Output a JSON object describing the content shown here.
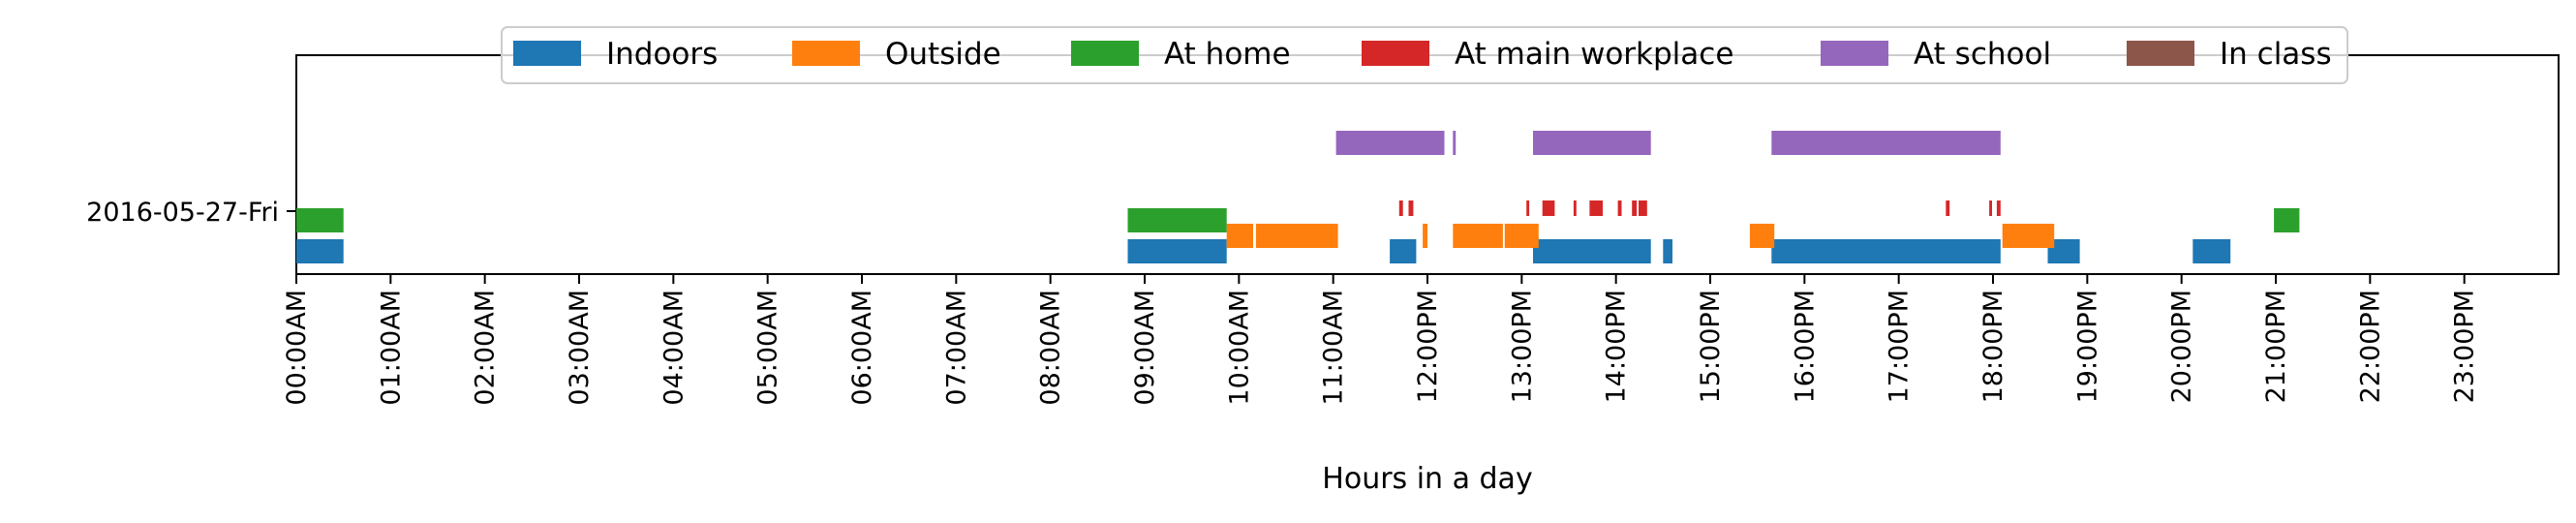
{
  "chart_data": {
    "type": "timeline",
    "title": "",
    "xlabel": "Hours in a day",
    "ylabel": "",
    "xlim": [
      0,
      24
    ],
    "grid": false,
    "legend_placement": "top-center",
    "y_categories": [
      "2016-05-27-Fri"
    ],
    "x_ticks": [
      {
        "value": 0,
        "label": "00:00AM"
      },
      {
        "value": 1,
        "label": "01:00AM"
      },
      {
        "value": 2,
        "label": "02:00AM"
      },
      {
        "value": 3,
        "label": "03:00AM"
      },
      {
        "value": 4,
        "label": "04:00AM"
      },
      {
        "value": 5,
        "label": "05:00AM"
      },
      {
        "value": 6,
        "label": "06:00AM"
      },
      {
        "value": 7,
        "label": "07:00AM"
      },
      {
        "value": 8,
        "label": "08:00AM"
      },
      {
        "value": 9,
        "label": "09:00AM"
      },
      {
        "value": 10,
        "label": "10:00AM"
      },
      {
        "value": 11,
        "label": "11:00AM"
      },
      {
        "value": 12,
        "label": "12:00PM"
      },
      {
        "value": 13,
        "label": "13:00PM"
      },
      {
        "value": 14,
        "label": "14:00PM"
      },
      {
        "value": 15,
        "label": "15:00PM"
      },
      {
        "value": 16,
        "label": "16:00PM"
      },
      {
        "value": 17,
        "label": "17:00PM"
      },
      {
        "value": 18,
        "label": "18:00PM"
      },
      {
        "value": 19,
        "label": "19:00PM"
      },
      {
        "value": 20,
        "label": "20:00PM"
      },
      {
        "value": 21,
        "label": "21:00PM"
      },
      {
        "value": 22,
        "label": "22:00PM"
      },
      {
        "value": 23,
        "label": "23:00PM"
      }
    ],
    "series": [
      {
        "name": "Indoors",
        "color": "#1f77b4",
        "intervals": [
          [
            0.0,
            0.5
          ],
          [
            8.82,
            9.87
          ],
          [
            11.6,
            11.88
          ],
          [
            13.12,
            14.37
          ],
          [
            14.5,
            14.6
          ],
          [
            15.65,
            18.08
          ],
          [
            18.58,
            18.92
          ],
          [
            20.12,
            20.52
          ]
        ]
      },
      {
        "name": "Outside",
        "color": "#ff7f0e",
        "intervals": [
          [
            9.87,
            10.15
          ],
          [
            10.18,
            11.05
          ],
          [
            11.95,
            12.0
          ],
          [
            12.27,
            12.8
          ],
          [
            12.82,
            13.18
          ],
          [
            15.42,
            15.68
          ],
          [
            18.1,
            18.65
          ]
        ]
      },
      {
        "name": "At home",
        "color": "#2ca02c",
        "intervals": [
          [
            0.0,
            0.5
          ],
          [
            8.82,
            9.87
          ],
          [
            20.98,
            21.25
          ]
        ]
      },
      {
        "name": "At main workplace",
        "color": "#d62728",
        "intervals": [
          [
            11.7,
            11.74
          ],
          [
            11.8,
            11.85
          ],
          [
            13.05,
            13.08
          ],
          [
            13.22,
            13.35
          ],
          [
            13.55,
            13.58
          ],
          [
            13.72,
            13.86
          ],
          [
            14.02,
            14.06
          ],
          [
            14.17,
            14.22
          ],
          [
            14.24,
            14.33
          ],
          [
            17.5,
            17.54
          ],
          [
            17.96,
            17.99
          ],
          [
            18.04,
            18.08
          ]
        ]
      },
      {
        "name": "At school",
        "color": "#9467bd",
        "intervals": [
          [
            11.03,
            12.18
          ],
          [
            12.27,
            12.3
          ],
          [
            13.12,
            14.37
          ],
          [
            15.65,
            18.08
          ]
        ]
      },
      {
        "name": "In class",
        "color": "#8c564b",
        "intervals": []
      }
    ]
  }
}
